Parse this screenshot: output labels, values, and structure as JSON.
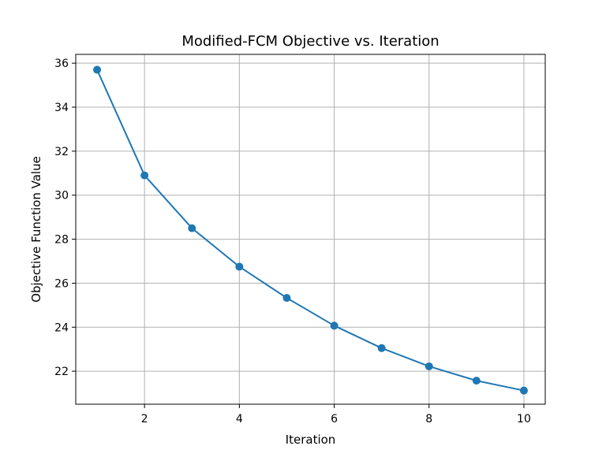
{
  "chart_data": {
    "type": "line",
    "title": "Modified-FCM Objective vs. Iteration",
    "xlabel": "Iteration",
    "ylabel": "Objective Function Value",
    "x": [
      1,
      2,
      3,
      4,
      5,
      6,
      7,
      8,
      9,
      10
    ],
    "series": [
      {
        "values": [
          35.7,
          30.9,
          28.5,
          26.75,
          25.33,
          24.07,
          23.05,
          22.22,
          21.57,
          21.12
        ],
        "color": "#1f77b4",
        "marker": "circle"
      }
    ],
    "xlim": [
      0.55,
      10.45
    ],
    "ylim": [
      20.5,
      36.4
    ],
    "xticks": [
      2,
      4,
      6,
      8,
      10
    ],
    "yticks": [
      22,
      24,
      26,
      28,
      30,
      32,
      34,
      36
    ],
    "grid": true,
    "legend": "none"
  }
}
